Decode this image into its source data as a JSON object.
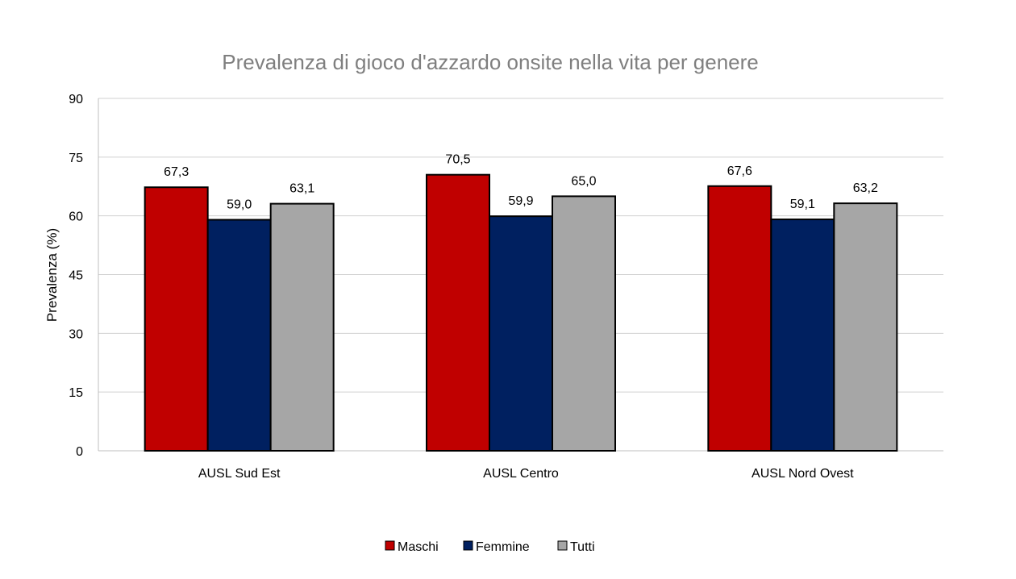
{
  "chart_data": {
    "type": "bar",
    "title": "Prevalenza di gioco d'azzardo onsite nella vita per genere",
    "xlabel": "",
    "ylabel": "Prevalenza (%)",
    "ylim": [
      0,
      90
    ],
    "yticks": [
      0,
      15,
      30,
      45,
      60,
      75,
      90
    ],
    "grid": true,
    "legend_position": "bottom",
    "categories": [
      "AUSL Sud Est",
      "AUSL Centro",
      "AUSL Nord Ovest"
    ],
    "series": [
      {
        "name": "Maschi",
        "color": "#c00000",
        "values": [
          67.3,
          70.5,
          67.6
        ],
        "labels": [
          "67,3",
          "70,5",
          "67,6"
        ]
      },
      {
        "name": "Femmine",
        "color": "#002060",
        "values": [
          59.0,
          59.9,
          59.1
        ],
        "labels": [
          "59,0",
          "59,9",
          "59,1"
        ]
      },
      {
        "name": "Tutti",
        "color": "#a6a6a6",
        "values": [
          63.1,
          65.0,
          63.2
        ],
        "labels": [
          "63,1",
          "65,0",
          "63,2"
        ]
      }
    ]
  }
}
